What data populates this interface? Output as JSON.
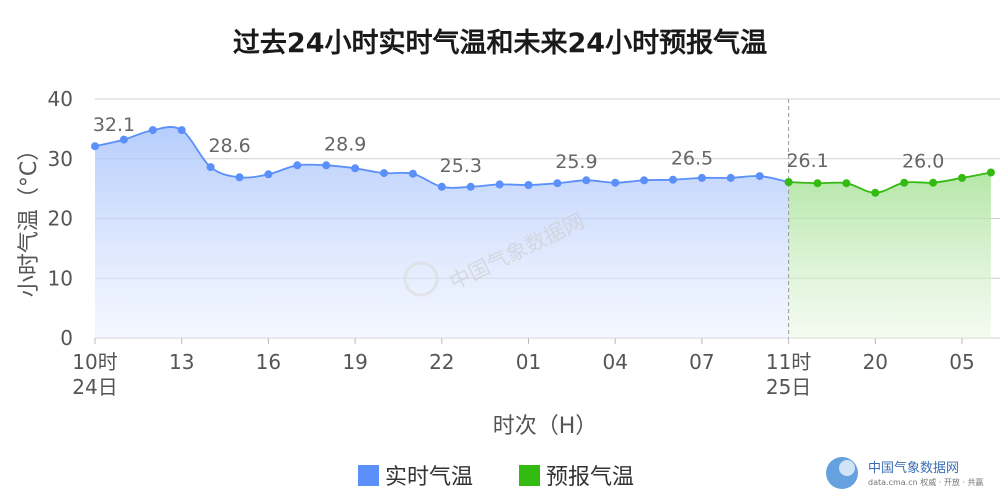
{
  "chart_data": {
    "type": "area",
    "title": "过去24小时实时气温和未来24小时预报气温",
    "xlabel": "时次（H）",
    "ylabel": "小时气温（°C）",
    "ylim": [
      0,
      40
    ],
    "yticks": [
      "0",
      "10",
      "20",
      "30",
      "40"
    ],
    "grid": true,
    "legend_position": "bottom-center",
    "x_ticks": [
      {
        "index": 0,
        "line1": "10时",
        "line2": "24日"
      },
      {
        "index": 3,
        "line1": "13",
        "line2": ""
      },
      {
        "index": 6,
        "line1": "16",
        "line2": ""
      },
      {
        "index": 9,
        "line1": "19",
        "line2": ""
      },
      {
        "index": 12,
        "line1": "22",
        "line2": ""
      },
      {
        "index": 15,
        "line1": "01",
        "line2": ""
      },
      {
        "index": 18,
        "line1": "04",
        "line2": ""
      },
      {
        "index": 21,
        "line1": "07",
        "line2": ""
      },
      {
        "index": 24,
        "line1": "11时",
        "line2": "25日"
      },
      {
        "index": 27,
        "line1": "20",
        "line2": ""
      },
      {
        "index": 30,
        "line1": "05",
        "line2": ""
      }
    ],
    "series": [
      {
        "name": "实时气温",
        "color": "#5b8ff9",
        "start_index": 0,
        "values": [
          32.1,
          33.2,
          34.8,
          34.8,
          28.6,
          26.9,
          27.4,
          28.9,
          28.9,
          28.4,
          27.6,
          27.5,
          25.3,
          25.3,
          25.7,
          25.6,
          25.9,
          26.4,
          26.0,
          26.4,
          26.5,
          26.8,
          26.8,
          27.1,
          26.1
        ]
      },
      {
        "name": "预报气温",
        "color": "#33bb11",
        "start_index": 24,
        "values": [
          26.1,
          25.9,
          25.9,
          24.3,
          26.0,
          26.0,
          26.8,
          27.7
        ]
      }
    ],
    "data_labels": [
      {
        "index": 0,
        "text": "32.1"
      },
      {
        "index": 4,
        "text": "28.6"
      },
      {
        "index": 8,
        "text": "28.9"
      },
      {
        "index": 12,
        "text": "25.3"
      },
      {
        "index": 16,
        "text": "25.9"
      },
      {
        "index": 20,
        "text": "26.5"
      },
      {
        "index": 24,
        "text": "26.1"
      },
      {
        "index": 28,
        "text": "26.0"
      }
    ],
    "divider_index": 24
  },
  "watermark": {
    "text": "中国气象数据网"
  },
  "source_logo": {
    "name": "中国气象数据网",
    "url": "data.cma.cn 权威 · 开放 · 共赢"
  }
}
